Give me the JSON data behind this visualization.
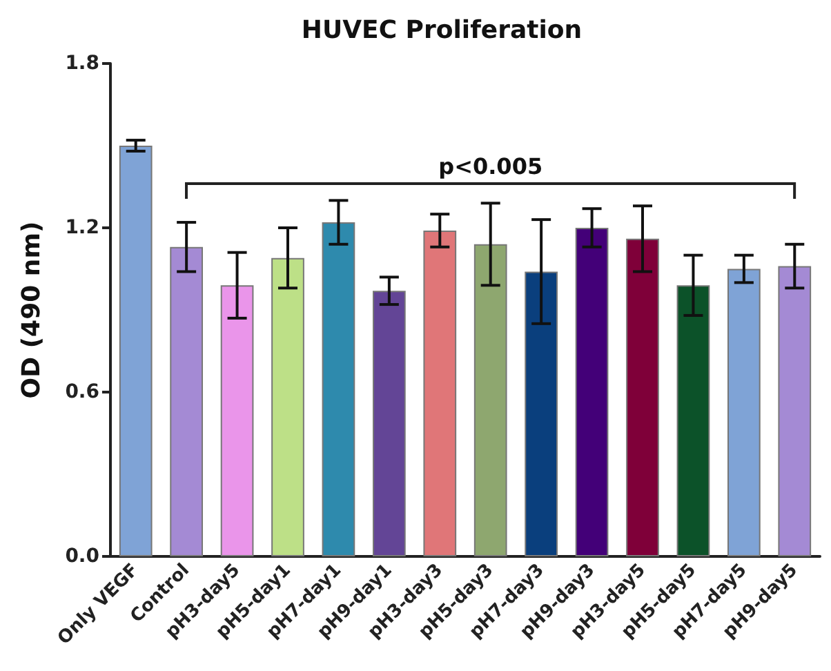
{
  "chart_data": {
    "type": "bar",
    "title": "HUVEC Proliferation",
    "ylabel": "OD (490 nm)",
    "categories": [
      "Only VEGF",
      "Control",
      "pH3-day5",
      "pH5-day1",
      "pH7-day1",
      "pH9-day1",
      "pH3-day3",
      "pH5-day3",
      "pH7-day3",
      "pH9-day3",
      "pH3-day5",
      "pH5-day5",
      "pH7-day5",
      "pH9-day5"
    ],
    "values": [
      1.5,
      1.13,
      0.99,
      1.09,
      1.22,
      0.97,
      1.19,
      1.14,
      1.04,
      1.2,
      1.16,
      0.99,
      1.05,
      1.06
    ],
    "errors": [
      0.02,
      0.09,
      0.12,
      0.11,
      0.08,
      0.05,
      0.06,
      0.15,
      0.19,
      0.07,
      0.12,
      0.11,
      0.05,
      0.08
    ],
    "colors": [
      "#7fa3d6",
      "#a48ad4",
      "#ea95ea",
      "#bde087",
      "#2e8aad",
      "#634596",
      "#e07678",
      "#8ea76f",
      "#0a3f7d",
      "#430078",
      "#7f0039",
      "#0c5229",
      "#7fa3d6",
      "#a48ad4"
    ],
    "ylim": [
      0,
      1.8
    ],
    "yticks": [
      {
        "value": 0,
        "label": "0.0"
      },
      {
        "value": 0.6,
        "label": "0.6"
      },
      {
        "value": 1.2,
        "label": "1.2"
      },
      {
        "value": 1.8,
        "label": "1.8"
      }
    ],
    "annotations": [
      "p<0.005"
    ],
    "grid": false
  }
}
